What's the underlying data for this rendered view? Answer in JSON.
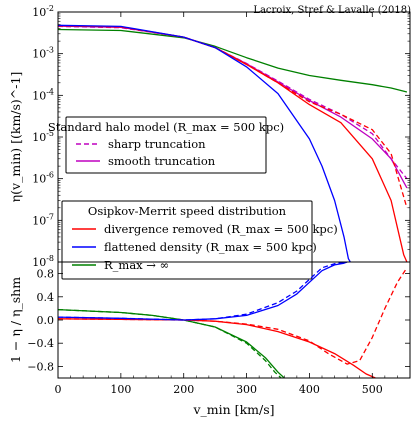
{
  "credit": "Lacroix, Stref & Lavalle (2018)",
  "chart_data": [
    {
      "type": "line",
      "panel": "top",
      "xlabel": "v_min [km/s]",
      "ylabel": "η(v_min) [(km/s)^-1]",
      "xlim": [
        0,
        560
      ],
      "ylim": [
        1e-08,
        0.01
      ],
      "yscale": "log",
      "grid": false,
      "y_ticks": [
        "10^-8",
        "10^-7",
        "10^-6",
        "10^-5",
        "10^-4",
        "10^-3",
        "10^-2"
      ],
      "legends": [
        {
          "title": "Standard halo model (R_max = 500 kpc)",
          "placement": "center-left",
          "entries": [
            {
              "label": "sharp truncation",
              "color": "#bf00bf",
              "dash": "dashed"
            },
            {
              "label": "smooth truncation",
              "color": "#bf00bf",
              "dash": "solid"
            }
          ]
        },
        {
          "title": "Osipkov-Merrit speed distribution",
          "placement": "lower-left",
          "entries": [
            {
              "label": "divergence removed (R_max = 500 kpc)",
              "color": "#ff0000",
              "dash": "solid"
            },
            {
              "label": "flattened density (R_max = 500 kpc)",
              "color": "#0000ff",
              "dash": "solid"
            },
            {
              "label": "R_max → ∞",
              "color": "#008000",
              "dash": "solid"
            }
          ]
        }
      ],
      "series": [
        {
          "name": "R_max → ∞",
          "color": "#008000",
          "dash": "solid",
          "x": [
            0,
            100,
            200,
            250,
            300,
            350,
            400,
            450,
            500,
            530,
            555
          ],
          "y": [
            0.0038,
            0.0036,
            0.0024,
            0.0015,
            0.0008,
            0.00045,
            0.0003,
            0.00023,
            0.00018,
            0.00015,
            0.00012
          ]
        },
        {
          "name": "sharp truncation",
          "color": "#bf00bf",
          "dash": "dashed",
          "x": [
            0,
            100,
            200,
            250,
            300,
            350,
            400,
            450,
            500,
            530,
            555
          ],
          "y": [
            0.0045,
            0.0042,
            0.0025,
            0.0014,
            0.00058,
            0.00022,
            8e-05,
            3.5e-05,
            1.2e-05,
            3e-06,
            1e-06
          ]
        },
        {
          "name": "smooth truncation",
          "color": "#bf00bf",
          "dash": "solid",
          "x": [
            0,
            100,
            200,
            250,
            300,
            350,
            400,
            450,
            500,
            530,
            555
          ],
          "y": [
            0.0046,
            0.0043,
            0.0025,
            0.0014,
            0.00057,
            0.00021,
            7.5e-05,
            3e-05,
            9e-06,
            3e-06,
            6e-07
          ]
        },
        {
          "name": "divergence removed (R_max = 500 kpc)",
          "color": "#ff0000",
          "dash": "solid",
          "x": [
            0,
            100,
            200,
            250,
            300,
            350,
            400,
            450,
            500,
            530,
            550,
            555
          ],
          "y": [
            0.0047,
            0.0044,
            0.0025,
            0.0014,
            0.00055,
            0.0002,
            6e-05,
            2.2e-05,
            3e-06,
            3e-07,
            1.5e-08,
            1e-08
          ]
        },
        {
          "name": "divergence removed, sharp (dashed)",
          "color": "#ff0000",
          "dash": "dashed",
          "x": [
            0,
            100,
            200,
            250,
            300,
            350,
            400,
            450,
            500,
            530,
            555
          ],
          "y": [
            0.0047,
            0.0044,
            0.0025,
            0.0014,
            0.00055,
            0.0002,
            7e-05,
            3.5e-05,
            1.5e-05,
            4e-06,
            2e-07
          ]
        },
        {
          "name": "flattened density (R_max = 500 kpc)",
          "color": "#0000ff",
          "dash": "solid",
          "x": [
            0,
            100,
            200,
            250,
            300,
            350,
            400,
            420,
            440,
            455,
            462,
            465
          ],
          "y": [
            0.0048,
            0.0045,
            0.0025,
            0.0014,
            0.00048,
            0.00011,
            9e-06,
            2e-06,
            3e-07,
            4e-08,
            1.2e-08,
            1e-08
          ]
        }
      ]
    },
    {
      "type": "line",
      "panel": "bottom",
      "xlabel": "v_min [km/s]",
      "ylabel": "1 − η / η_shm",
      "xlim": [
        0,
        560
      ],
      "ylim": [
        -1,
        1
      ],
      "x_ticks": [
        0,
        100,
        200,
        300,
        400,
        500
      ],
      "y_ticks": [
        -0.8,
        -0.4,
        0.0,
        0.4,
        0.8
      ],
      "series": [
        {
          "name": "green",
          "color": "#008000",
          "dash": "solid",
          "x": [
            0,
            100,
            150,
            200,
            250,
            300,
            330,
            350,
            360
          ],
          "y": [
            0.18,
            0.13,
            0.08,
            0.0,
            -0.12,
            -0.38,
            -0.65,
            -0.9,
            -1.0
          ]
        },
        {
          "name": "green dashed",
          "color": "#008000",
          "dash": "dashed",
          "x": [
            0,
            100,
            150,
            200,
            250,
            300,
            330,
            345,
            355
          ],
          "y": [
            0.18,
            0.13,
            0.08,
            0.0,
            -0.12,
            -0.4,
            -0.7,
            -0.9,
            -1.0
          ]
        },
        {
          "name": "red solid",
          "color": "#ff0000",
          "dash": "solid",
          "x": [
            0,
            100,
            200,
            250,
            300,
            350,
            400,
            440,
            470,
            490,
            505
          ],
          "y": [
            0.02,
            0.01,
            0.0,
            -0.02,
            -0.08,
            -0.2,
            -0.38,
            -0.58,
            -0.78,
            -0.93,
            -1.0
          ]
        },
        {
          "name": "red dashed",
          "color": "#ff0000",
          "dash": "dashed",
          "x": [
            0,
            100,
            200,
            250,
            300,
            350,
            400,
            430,
            460,
            480,
            500,
            520,
            540,
            555
          ],
          "y": [
            0.02,
            0.01,
            0.0,
            -0.02,
            -0.07,
            -0.16,
            -0.36,
            -0.58,
            -0.76,
            -0.7,
            -0.3,
            0.2,
            0.65,
            0.9
          ]
        },
        {
          "name": "blue solid",
          "color": "#0000ff",
          "dash": "solid",
          "x": [
            0,
            100,
            200,
            250,
            300,
            350,
            380,
            400,
            420,
            440,
            455,
            460
          ],
          "y": [
            0.05,
            0.03,
            0.0,
            0.02,
            0.08,
            0.25,
            0.45,
            0.65,
            0.85,
            0.95,
            0.98,
            1.0
          ]
        },
        {
          "name": "blue dashed",
          "color": "#0000ff",
          "dash": "dashed",
          "x": [
            0,
            100,
            200,
            250,
            300,
            350,
            380,
            400,
            420,
            440,
            460
          ],
          "y": [
            0.05,
            0.03,
            0.0,
            0.02,
            0.1,
            0.3,
            0.5,
            0.7,
            0.9,
            0.97,
            1.0
          ]
        }
      ]
    }
  ]
}
